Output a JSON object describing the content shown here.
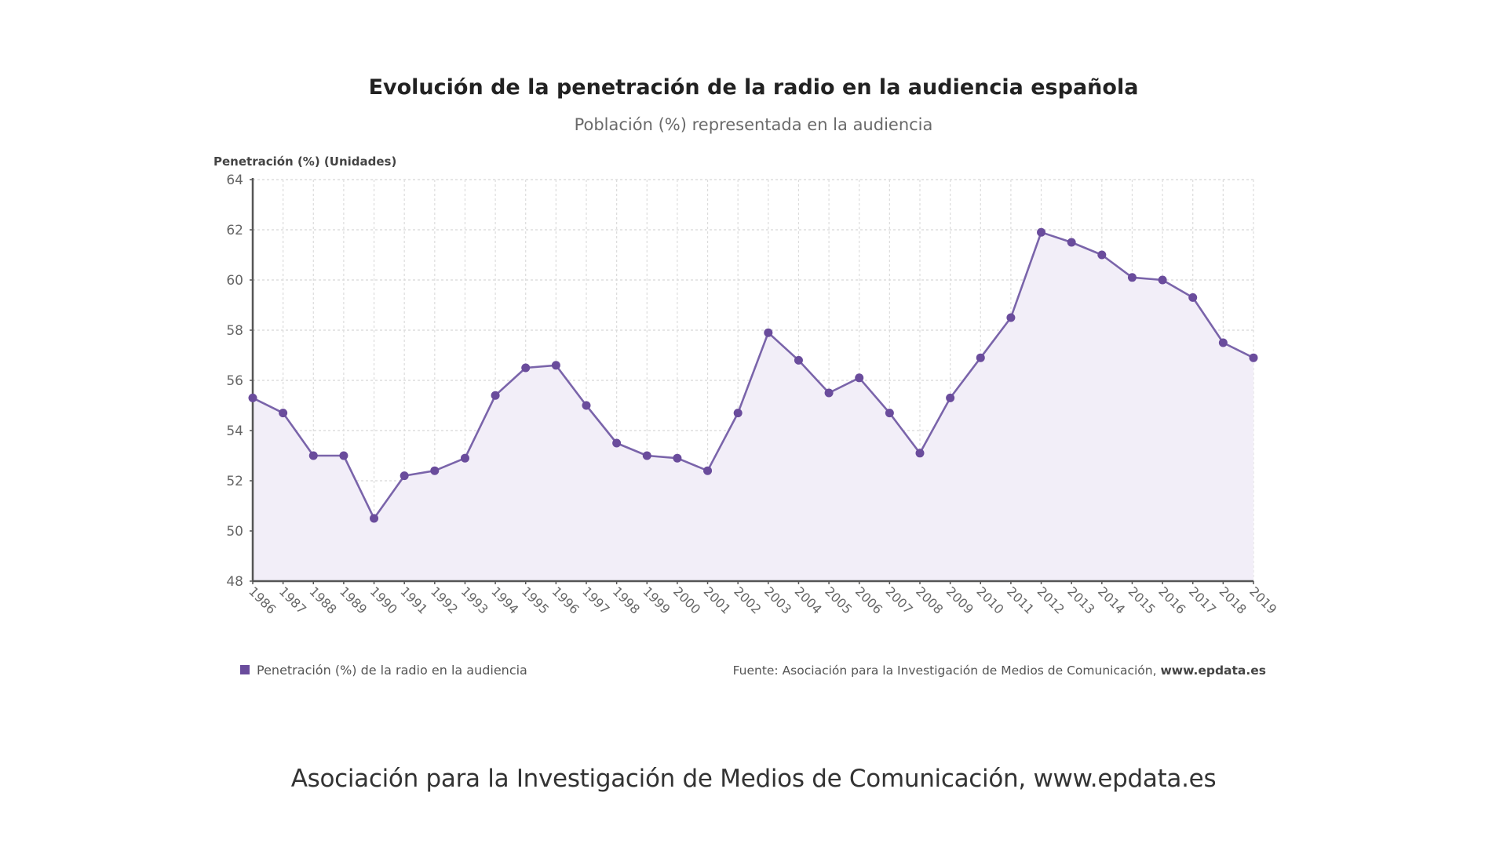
{
  "chart_data": {
    "type": "line",
    "title": "Evolución de la penetración de la radio en la audiencia española",
    "subtitle": "Población (%) representada en la audiencia",
    "ylabel": "Penetración (%) (Unidades)",
    "xlabel": "",
    "ylim": [
      48,
      64
    ],
    "yticks": [
      48,
      50,
      52,
      54,
      56,
      58,
      60,
      62,
      64
    ],
    "grid": true,
    "legend_position": "bottom-left",
    "x": [
      "1986",
      "1987",
      "1988",
      "1989",
      "1990",
      "1991",
      "1992",
      "1993",
      "1994",
      "1995",
      "1996",
      "1997",
      "1998",
      "1999",
      "2000",
      "2001",
      "2002",
      "2003",
      "2004",
      "2005",
      "2006",
      "2007",
      "2008",
      "2009",
      "2010",
      "2011",
      "2012",
      "2013",
      "2014",
      "2015",
      "2016",
      "2017",
      "2018",
      "2019"
    ],
    "series": [
      {
        "name": "Penetración (%) de la radio en la audiencia",
        "color": "#6a4c9c",
        "fill": "#f2eef8",
        "values": [
          55.3,
          54.7,
          53.0,
          53.0,
          50.5,
          52.2,
          52.4,
          52.9,
          55.4,
          56.5,
          56.6,
          55.0,
          53.5,
          53.0,
          52.9,
          52.4,
          54.7,
          57.9,
          56.8,
          55.5,
          56.1,
          54.7,
          53.1,
          55.3,
          56.9,
          58.5,
          61.9,
          61.5,
          61.0,
          60.1,
          60.0,
          59.3,
          57.5,
          56.9
        ]
      }
    ],
    "source_prefix": "Fuente: Asociación para la Investigación de Medios de Comunicación, ",
    "source_link": "www.epdata.es"
  },
  "caption": "Asociación para la Investigación de Medios de Comunicación, www.epdata.es"
}
